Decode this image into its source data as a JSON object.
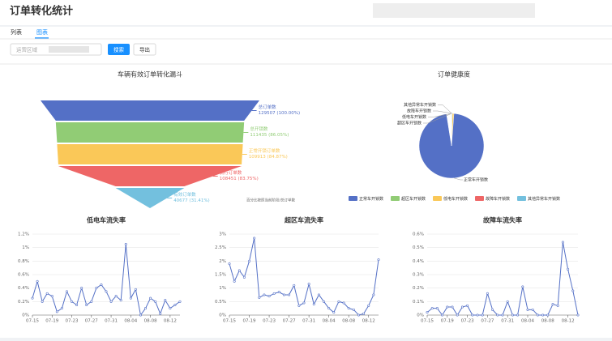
{
  "header": {
    "title": "订单转化统计"
  },
  "tabs": [
    "列表",
    "图表"
  ],
  "filter": {
    "label": "运营区域",
    "buttons": [
      "搜索",
      "导出"
    ]
  },
  "chart_data": [
    {
      "type": "funnel",
      "title": "车辆有效订单转化漏斗",
      "categories": [
        "总订单数",
        "总开锁数",
        "正常开锁订单数",
        "骑行订单数",
        "有效订单数"
      ],
      "values": [
        129507,
        111435,
        109913,
        108451,
        40677
      ],
      "value_labels": [
        "129507 (100.00%)",
        "111435 (86.05%)",
        "109913 (84.87%)",
        "108451 (83.75%)",
        "40677 (31.41%)"
      ],
      "colors": [
        "#5470c6",
        "#91cc75",
        "#fac858",
        "#ee6666",
        "#73c0de"
      ],
      "note": "百分比按照当前阶段/总订单数"
    },
    {
      "type": "pie",
      "title": "订单健康度",
      "categories": [
        "正常车开锁数",
        "超区车开锁数",
        "低电车开锁数",
        "故障车开锁数",
        "其他异常车开锁数"
      ],
      "values": [
        97.5,
        0.6,
        1.2,
        0.4,
        0.3
      ],
      "colors": [
        "#5470c6",
        "#91cc75",
        "#fac858",
        "#ee6666",
        "#73c0de"
      ]
    },
    {
      "type": "line",
      "title": "低电车流失率",
      "color": "#5470c6",
      "categories": [
        "07-15",
        null,
        null,
        null,
        "07-19",
        null,
        null,
        null,
        "07-23",
        null,
        null,
        null,
        "07-27",
        null,
        null,
        null,
        "07-31",
        null,
        null,
        null,
        "08-04",
        null,
        null,
        null,
        "08-08",
        null,
        null,
        null,
        "08-12",
        null,
        null
      ],
      "values": [
        0.25,
        0.5,
        0.2,
        0.32,
        0.28,
        0.05,
        0.1,
        0.35,
        0.2,
        0.15,
        0.4,
        0.15,
        0.2,
        0.4,
        0.45,
        0.35,
        0.2,
        0.28,
        0.22,
        1.05,
        0.25,
        0.38,
        0.0,
        0.1,
        0.25,
        0.2,
        0.02,
        0.22,
        0.1,
        0.15,
        0.2
      ],
      "ylim": [
        0,
        1.2
      ],
      "yticks": [
        {
          "value": 0,
          "label": "0%"
        },
        {
          "value": 0.2,
          "label": "0.2%"
        },
        {
          "value": 0.4,
          "label": "0.4%"
        },
        {
          "value": 0.6,
          "label": "0.6%"
        },
        {
          "value": 0.8,
          "label": "0.8%"
        },
        {
          "value": 1,
          "label": "1%"
        },
        {
          "value": 1.2,
          "label": "1.2%"
        }
      ]
    },
    {
      "type": "line",
      "title": "超区车流失率",
      "color": "#5470c6",
      "categories": [
        "07-15",
        null,
        null,
        null,
        "07-19",
        null,
        null,
        null,
        "07-23",
        null,
        null,
        null,
        "07-27",
        null,
        null,
        null,
        "07-31",
        null,
        null,
        null,
        "08-04",
        null,
        null,
        null,
        "08-08",
        null,
        null,
        null,
        "08-12",
        null,
        null
      ],
      "values": [
        1.9,
        1.25,
        1.65,
        1.4,
        2.0,
        2.85,
        0.65,
        0.75,
        0.7,
        0.8,
        0.85,
        0.75,
        0.75,
        1.1,
        0.35,
        0.45,
        1.15,
        0.4,
        0.75,
        0.5,
        0.25,
        0.1,
        0.5,
        0.45,
        0.25,
        0.2,
        0.0,
        0.05,
        0.35,
        0.75,
        2.05
      ],
      "ylim": [
        0,
        3
      ],
      "yticks": [
        {
          "value": 0,
          "label": "0%"
        },
        {
          "value": 0.5,
          "label": "0.5%"
        },
        {
          "value": 1,
          "label": "1%"
        },
        {
          "value": 1.5,
          "label": "1.5%"
        },
        {
          "value": 2,
          "label": "2%"
        },
        {
          "value": 2.5,
          "label": "2.5%"
        },
        {
          "value": 3,
          "label": "3%"
        }
      ]
    },
    {
      "type": "line",
      "title": "故障车流失率",
      "color": "#5470c6",
      "categories": [
        "07-15",
        null,
        null,
        null,
        "07-19",
        null,
        null,
        null,
        "07-23",
        null,
        null,
        null,
        "07-27",
        null,
        null,
        null,
        "07-31",
        null,
        null,
        null,
        "08-04",
        null,
        null,
        null,
        "08-08",
        null,
        null,
        null,
        "08-12",
        null,
        null
      ],
      "values": [
        0.02,
        0.05,
        0.05,
        0,
        0.06,
        0.06,
        0,
        0.06,
        0.07,
        0,
        0,
        0,
        0.16,
        0.04,
        0,
        0,
        0.1,
        0,
        0,
        0.21,
        0.04,
        0.04,
        0,
        0,
        0,
        0.08,
        0.07,
        0.54,
        0.34,
        0.18,
        0
      ],
      "ylim": [
        0,
        0.6
      ],
      "yticks": [
        {
          "value": 0,
          "label": "0%"
        },
        {
          "value": 0.1,
          "label": "0.1%"
        },
        {
          "value": 0.2,
          "label": "0.2%"
        },
        {
          "value": 0.3,
          "label": "0.3%"
        },
        {
          "value": 0.4,
          "label": "0.4%"
        },
        {
          "value": 0.5,
          "label": "0.5%"
        },
        {
          "value": 0.6,
          "label": "0.6%"
        }
      ]
    }
  ]
}
